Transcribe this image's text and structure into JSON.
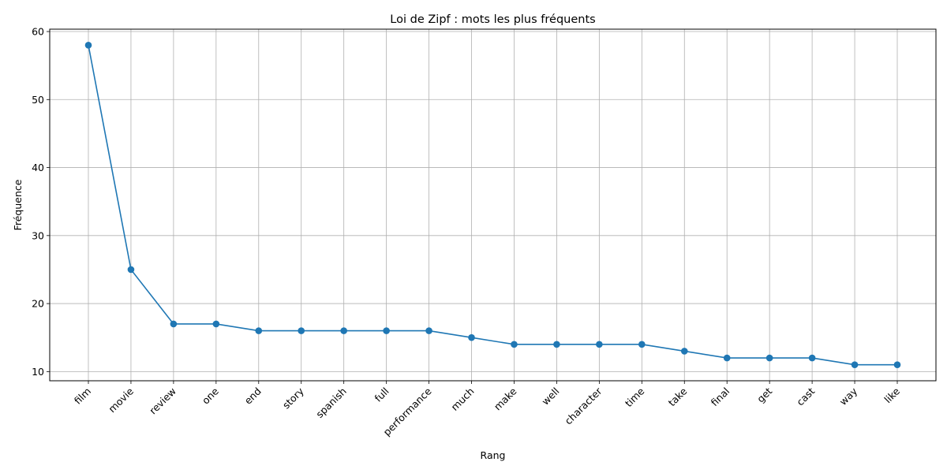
{
  "chart_data": {
    "type": "line",
    "title": "Loi de Zipf : mots les plus fréquents",
    "xlabel": "Rang",
    "ylabel": "Fréquence",
    "categories": [
      "film",
      "movie",
      "review",
      "one",
      "end",
      "story",
      "spanish",
      "full",
      "performance",
      "much",
      "make",
      "well",
      "character",
      "time",
      "take",
      "final",
      "get",
      "cast",
      "way",
      "like"
    ],
    "series": [
      {
        "values": [
          58,
          25,
          17,
          17,
          16,
          16,
          16,
          16,
          16,
          15,
          14,
          14,
          14,
          14,
          13,
          12,
          12,
          12,
          11,
          11
        ],
        "color": "#1f77b4",
        "marker": "circle"
      }
    ],
    "yticks": [
      10,
      20,
      30,
      40,
      50,
      60
    ],
    "ylim": [
      8.65,
      60.35
    ],
    "grid": true,
    "colors": {
      "line": "#1f77b4",
      "grid": "#b0b0b0",
      "axis": "#000000"
    }
  }
}
